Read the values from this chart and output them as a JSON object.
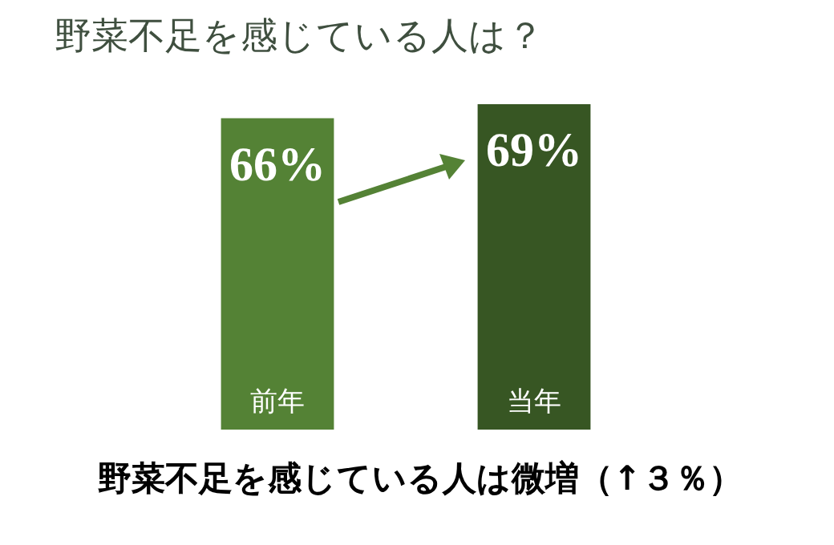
{
  "chart_data": {
    "type": "bar",
    "title": "野菜不足を感じている人は？",
    "categories": [
      "前年",
      "当年"
    ],
    "values": [
      66,
      69
    ],
    "value_labels": [
      "66%",
      "69%"
    ],
    "colors": [
      "#548235",
      "#375623"
    ],
    "annotations": [
      "野菜不足を感じている人は微増（↑３％）"
    ]
  }
}
